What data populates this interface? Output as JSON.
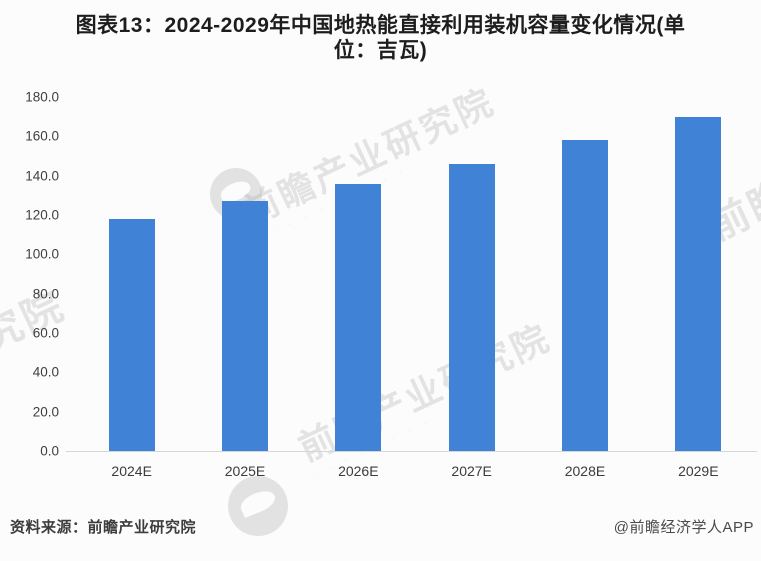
{
  "header": {
    "title_line1": "图表13：2024-2029年中国地热能直接利用装机容量变化情况(单",
    "title_line2": "位：吉瓦)"
  },
  "chart_data": {
    "type": "bar",
    "title": "图表13：2024-2029年中国地热能直接利用装机容量变化情况(单位：吉瓦)",
    "unit": "吉瓦",
    "categories": [
      "2024E",
      "2025E",
      "2026E",
      "2027E",
      "2028E",
      "2029E"
    ],
    "values": [
      118,
      127,
      136,
      146,
      158,
      170
    ],
    "xlabel": "",
    "ylabel": "",
    "ylim": [
      0,
      180
    ],
    "ytick_interval": 20,
    "yticks": [
      "180.0",
      "160.0",
      "140.0",
      "120.0",
      "100.0",
      "80.0",
      "60.0",
      "40.0",
      "20.0",
      "0.0"
    ],
    "grid": false,
    "legend_position": "none",
    "bar_color": "#3F82D6"
  },
  "footer": {
    "source": "资料来源：前瞻产业研究院",
    "credit": "@前瞻经济学人APP"
  },
  "watermark": {
    "text": "前瞻产业研究院",
    "fragment_left": "研究院",
    "fragment_right": "前瞻",
    "logo_icon": "qianzhan-circle-logo-icon",
    "color": "#ababab"
  }
}
